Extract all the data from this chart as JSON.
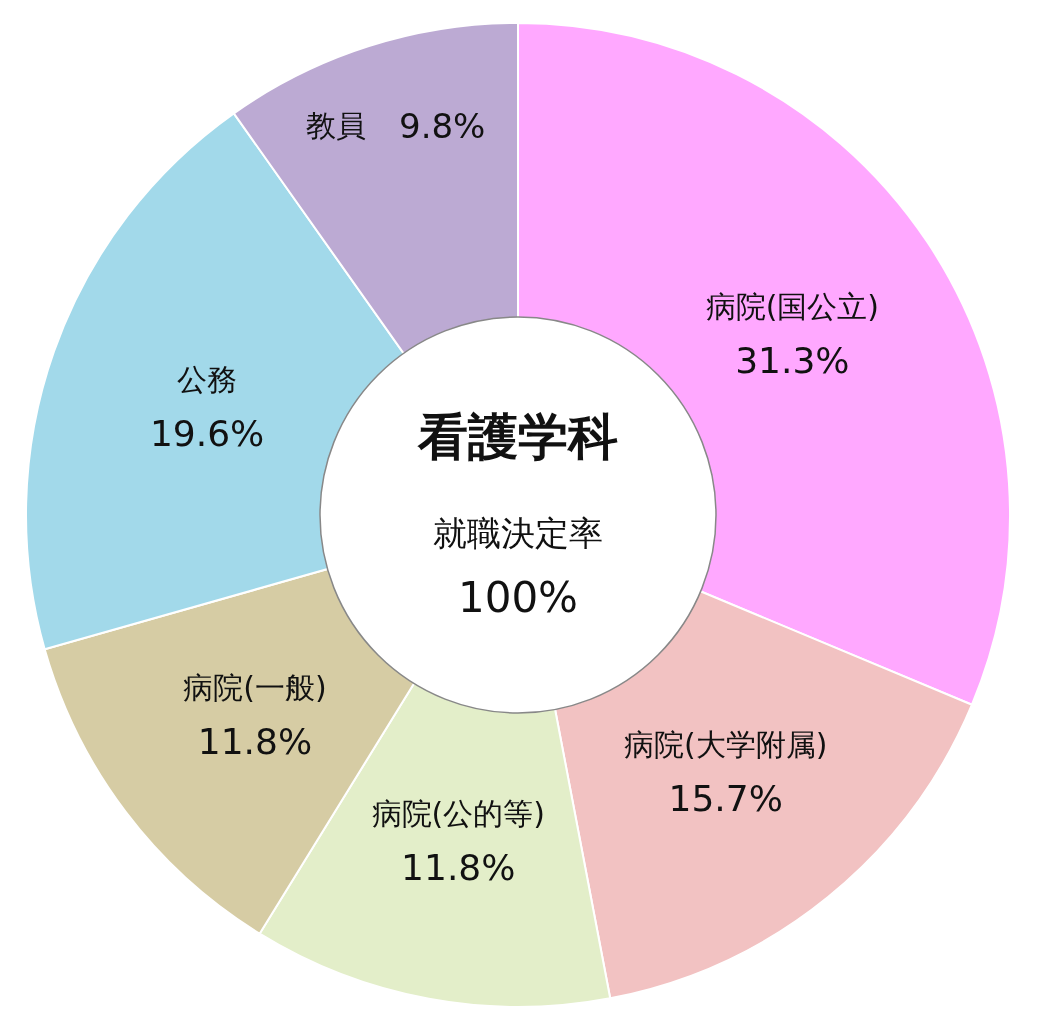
{
  "chart_data": {
    "type": "donut",
    "title": "看護学科",
    "subtitle": "就職決定率",
    "annotations": [
      "100%"
    ],
    "categories": [
      "病院(国公立)",
      "病院(大学附属)",
      "病院(公的等)",
      "病院(一般)",
      "公務",
      "教員"
    ],
    "values": [
      31.3,
      15.7,
      11.8,
      11.8,
      19.6,
      9.8
    ],
    "colors": [
      "#ffa8ff",
      "#f2c2c2",
      "#e3eec9",
      "#d6cca4",
      "#a2d9ea",
      "#bcaad3"
    ],
    "value_labels": [
      "31.3%",
      "15.7%",
      "11.8%",
      "11.8%",
      "19.6%",
      "9.8%"
    ]
  }
}
